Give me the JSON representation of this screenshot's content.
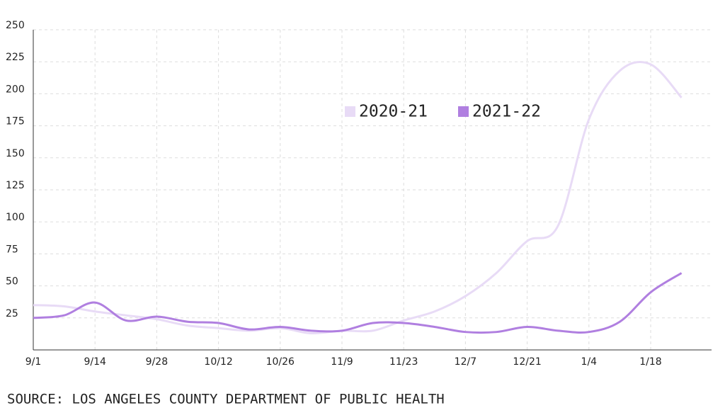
{
  "chart_data": {
    "type": "line",
    "categories": [
      "9/1",
      null,
      "9/14",
      null,
      "9/28",
      null,
      "10/12",
      null,
      "10/26",
      null,
      "11/9",
      null,
      "11/23",
      null,
      "12/7",
      null,
      "12/21",
      null,
      "1/4",
      null,
      "1/18",
      null
    ],
    "series": [
      {
        "name": "2020-21",
        "color": "#e8dbf6",
        "values": [
          35,
          34,
          30,
          27,
          24,
          19,
          17,
          15,
          17,
          13,
          15,
          15,
          23,
          30,
          42,
          60,
          85,
          97,
          180,
          218,
          223,
          197
        ]
      },
      {
        "name": "2021-22",
        "color": "#b07fe0",
        "values": [
          25,
          27,
          37,
          23,
          26,
          22,
          21,
          16,
          18,
          15,
          15,
          21,
          21,
          18,
          14,
          14,
          18,
          15,
          14,
          22,
          45,
          60
        ]
      }
    ],
    "ylim": [
      0,
      250
    ],
    "yticks": [
      25,
      50,
      75,
      100,
      125,
      150,
      175,
      200,
      225,
      250
    ],
    "grid": true,
    "source": "SOURCE: LOS ANGELES COUNTY DEPARTMENT OF PUBLIC HEALTH"
  }
}
